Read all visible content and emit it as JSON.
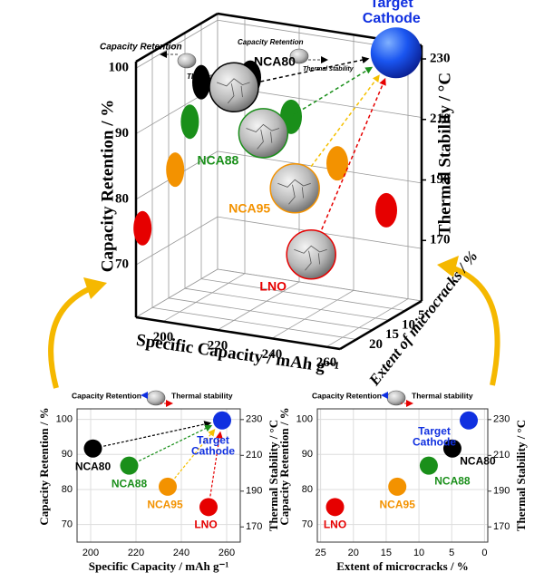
{
  "chart_data": [
    {
      "type": "scatter3d",
      "annotations": [
        "Capacity Retention",
        "Thermal stability"
      ],
      "x_label": "Specific Capacity / mAh g⁻¹",
      "y_label": "Capacity Retention / %",
      "y2_label": "Thermal Stability / °C",
      "z_label": "Extent of microcracks / %",
      "xlim": [
        190,
        265
      ],
      "xticks": [
        200,
        220,
        240,
        260
      ],
      "zlim": [
        25,
        0
      ],
      "zticks": [
        5,
        10,
        15,
        20
      ],
      "ylim": [
        62,
        101
      ],
      "yticks": [
        70,
        80,
        90,
        100
      ],
      "y2lim": [
        150,
        234.5
      ],
      "y2ticks": [
        170,
        190,
        210,
        230
      ],
      "series": [
        {
          "name": "NCA80",
          "color": "#000000",
          "marker": "cracked-sphere",
          "x": [
            202
          ],
          "z": [
            5
          ],
          "values": [
            92
          ]
        },
        {
          "name": "NCA88",
          "color": "#1a8f1a",
          "marker": "cracked-sphere",
          "x": [
            217
          ],
          "z": [
            8.5
          ],
          "values": [
            87
          ]
        },
        {
          "name": "NCA95",
          "color": "#f39200",
          "marker": "cracked-sphere",
          "x": [
            234
          ],
          "z": [
            13
          ],
          "values": [
            81
          ]
        },
        {
          "name": "LNO",
          "color": "#e60000",
          "marker": "cracked-sphere",
          "x": [
            252
          ],
          "z": [
            23
          ],
          "values": [
            75
          ]
        },
        {
          "name": "Target Cathode",
          "color": "#1030e0",
          "marker": "sphere",
          "x": [
            258
          ],
          "z": [
            2
          ],
          "values": [
            100
          ]
        }
      ]
    },
    {
      "type": "scatter",
      "annotations": [
        "Capacity Retention",
        "Thermal stability"
      ],
      "x_label": "Specific Capacity / mAh g⁻¹",
      "y_label": "Capacity Retention / %",
      "y2_label": "Thermal Stability / °C",
      "xlim": [
        194,
        266
      ],
      "xticks": [
        200,
        220,
        240,
        260
      ],
      "ylim": [
        65,
        103
      ],
      "yticks": [
        70,
        80,
        90,
        100
      ],
      "y2lim": [
        161.5,
        236
      ],
      "y2ticks": [
        170,
        190,
        210,
        230
      ],
      "series": [
        {
          "name": "NCA80",
          "color": "#000000",
          "x": [
            201
          ],
          "values": [
            91.7
          ]
        },
        {
          "name": "NCA88",
          "color": "#1a8f1a",
          "x": [
            217
          ],
          "values": [
            86.8
          ]
        },
        {
          "name": "NCA95",
          "color": "#f39200",
          "x": [
            234
          ],
          "values": [
            80.8
          ]
        },
        {
          "name": "LNO",
          "color": "#e60000",
          "x": [
            252
          ],
          "values": [
            75
          ]
        },
        {
          "name": "Target Cathode",
          "color": "#1030e0",
          "x": [
            258
          ],
          "values": [
            99.7
          ]
        }
      ]
    },
    {
      "type": "scatter",
      "annotations": [
        "Capacity Retention",
        "Thermal stability"
      ],
      "x_label": "Extent of microcracks / %",
      "y_label": "Capacity Retention / %",
      "y2_label": "Thermal Stability / °C",
      "xlim": [
        25.5,
        -0.5
      ],
      "xticks": [
        25,
        20,
        15,
        10,
        5,
        0
      ],
      "ylim": [
        65,
        103
      ],
      "yticks": [
        70,
        80,
        90,
        100
      ],
      "y2lim": [
        161.5,
        236
      ],
      "y2ticks": [
        170,
        190,
        210,
        230
      ],
      "series": [
        {
          "name": "LNO",
          "color": "#e60000",
          "x": [
            22.8
          ],
          "values": [
            75
          ]
        },
        {
          "name": "NCA95",
          "color": "#f39200",
          "x": [
            13.3
          ],
          "values": [
            80.8
          ]
        },
        {
          "name": "NCA88",
          "color": "#1a8f1a",
          "x": [
            8.5
          ],
          "values": [
            86.8
          ]
        },
        {
          "name": "NCA80",
          "color": "#000000",
          "x": [
            4.9
          ],
          "values": [
            91.7
          ]
        },
        {
          "name": "Target Cathode",
          "color": "#1030e0",
          "x": [
            2.4
          ],
          "values": [
            99.7
          ]
        }
      ]
    }
  ]
}
